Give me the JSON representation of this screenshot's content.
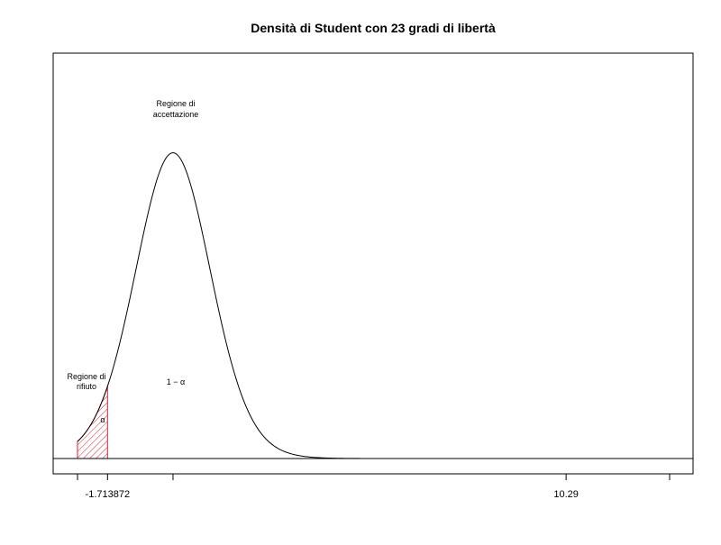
{
  "chart_data": {
    "type": "area",
    "title": "Densità di Student con 23 gradi di libertà",
    "distribution": "student-t",
    "degrees_of_freedom": 23,
    "xlim": [
      -2.5,
      13.0
    ],
    "ylim": [
      0,
      0.4
    ],
    "density_peak": [
      0.0,
      0.397
    ],
    "critical_value": -1.713872,
    "tick_values": [
      -2.5,
      -1.713872,
      0,
      10.29,
      13.0
    ],
    "tick_labels": [
      {
        "value": -1.713872,
        "text": "-1.713872"
      },
      {
        "value": 10.29,
        "text": "10.29"
      }
    ],
    "shaded_region": {
      "from": -2.5,
      "to": -1.713872,
      "fill": "hatched",
      "color": "#dd2233"
    },
    "annotations": {
      "acceptance_line1": "Regione di",
      "acceptance_line2": "accettazione",
      "rejection_line1": "Regione di",
      "rejection_line2": "rifiuto",
      "alpha_label": "α",
      "one_minus_alpha_label": "1 − α"
    },
    "baseline": true,
    "grid": false,
    "legend": "none",
    "colors": {
      "curve": "#000000",
      "rejection": "#dd2233"
    }
  }
}
